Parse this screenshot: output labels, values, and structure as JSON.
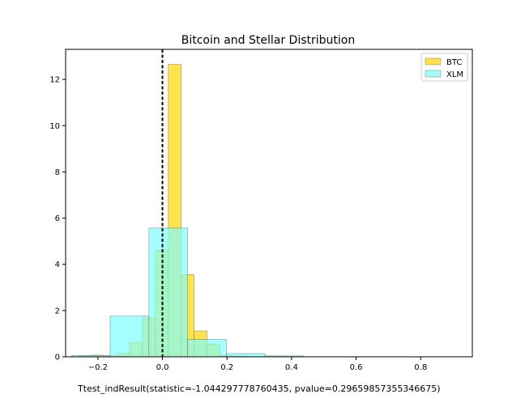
{
  "chart_data": {
    "type": "bar",
    "title": "Bitcoin and Stellar Distribution",
    "xlabel": "",
    "ylabel": "",
    "xlim": [
      -0.3,
      0.96
    ],
    "ylim": [
      0,
      13.3
    ],
    "xticks": [
      -0.2,
      0.0,
      0.2,
      0.4,
      0.6,
      0.8
    ],
    "xtick_labels": [
      "−0.2",
      "0.0",
      "0.2",
      "0.4",
      "0.6",
      "0.8"
    ],
    "yticks": [
      0,
      2,
      4,
      6,
      8,
      10,
      12
    ],
    "ytick_labels": [
      "0",
      "2",
      "4",
      "6",
      "8",
      "10",
      "12"
    ],
    "grid": false,
    "legend_position": "top-right",
    "vline_x": 0.0,
    "series": [
      {
        "name": "BTC",
        "color": "#ffd700",
        "edges": [
          -0.262,
          -0.222,
          -0.182,
          -0.142,
          -0.102,
          -0.062,
          -0.022,
          0.018,
          0.058,
          0.098,
          0.138,
          0.178,
          0.218,
          0.258
        ],
        "values": [
          0.05,
          0.07,
          0.05,
          0.15,
          0.62,
          1.68,
          4.62,
          12.65,
          3.56,
          1.12,
          0.55,
          0.05,
          0.02
        ]
      },
      {
        "name": "XLM",
        "color": "#7ffcfc",
        "edges": [
          -0.282,
          -0.162,
          -0.042,
          0.078,
          0.198,
          0.318,
          0.438
        ],
        "values": [
          0.06,
          1.76,
          5.57,
          0.75,
          0.14,
          0.04
        ]
      }
    ]
  },
  "footer_text": "Ttest_indResult(statistic=-1.044297778760435, pvalue=0.29659857355346675)"
}
